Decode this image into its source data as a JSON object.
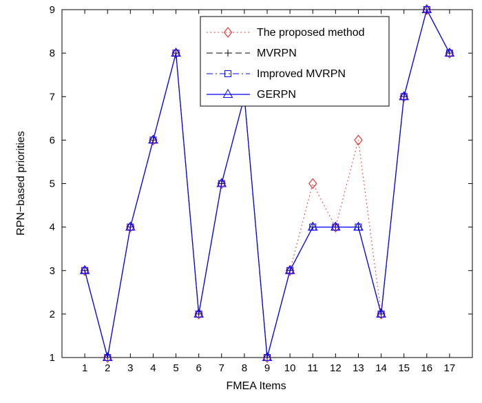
{
  "chart_data": {
    "type": "line",
    "xlabel": "FMEA Items",
    "ylabel": "RPN−based priorities",
    "x": [
      1,
      2,
      3,
      4,
      5,
      6,
      7,
      8,
      9,
      10,
      11,
      12,
      13,
      14,
      15,
      16,
      17
    ],
    "xlim": [
      0,
      18
    ],
    "ylim": [
      1,
      9
    ],
    "x_ticks": [
      "1",
      "2",
      "3",
      "4",
      "5",
      "6",
      "7",
      "8",
      "9",
      "10",
      "11",
      "12",
      "13",
      "14",
      "15",
      "16",
      "17"
    ],
    "y_ticks": [
      "1",
      "2",
      "3",
      "4",
      "5",
      "6",
      "7",
      "8",
      "9"
    ],
    "grid": false,
    "legend_position": "top-right",
    "series": [
      {
        "name": "The proposed method",
        "color": "#ff0000",
        "line_style": "dotted",
        "marker": "diamond",
        "values": [
          3,
          1,
          4,
          6,
          8,
          2,
          5,
          7,
          1,
          3,
          5,
          4,
          6,
          2,
          7,
          9,
          8
        ]
      },
      {
        "name": "MVRPN",
        "color": "#000000",
        "line_style": "dashed",
        "marker": "plus",
        "values": [
          3,
          1,
          4,
          6,
          8,
          2,
          5,
          7,
          1,
          3,
          4,
          4,
          4,
          2,
          7,
          9,
          8
        ]
      },
      {
        "name": "Improved MVRPN",
        "color": "#0000ff",
        "line_style": "dashdot",
        "marker": "square",
        "values": [
          3,
          1,
          4,
          6,
          8,
          2,
          5,
          7,
          1,
          3,
          4,
          4,
          4,
          2,
          7,
          9,
          8
        ]
      },
      {
        "name": "GERPN",
        "color": "#0000ff",
        "line_style": "solid",
        "marker": "triangle",
        "values": [
          3,
          1,
          4,
          6,
          8,
          2,
          5,
          7,
          1,
          3,
          4,
          4,
          4,
          2,
          7,
          9,
          8
        ]
      }
    ]
  }
}
